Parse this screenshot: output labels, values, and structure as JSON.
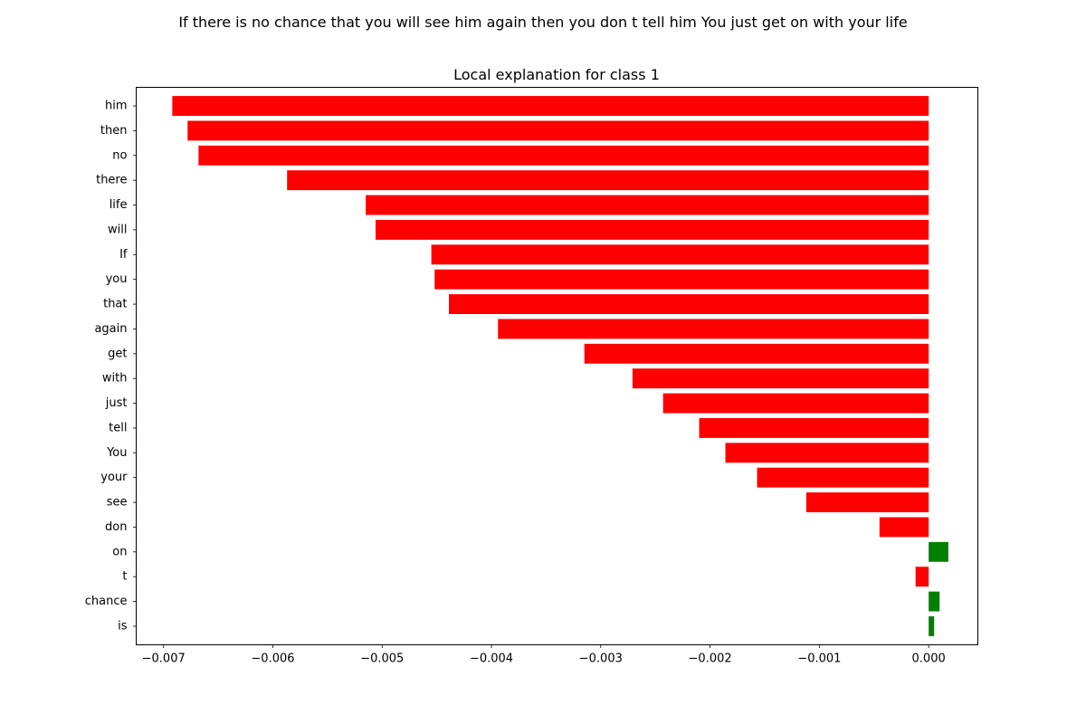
{
  "figure": {
    "suptitle": "If there is no chance that you will see him again then you don t tell him You just get on with your life"
  },
  "chart_data": {
    "type": "bar",
    "orientation": "horizontal",
    "title": "Local explanation for class 1",
    "xlabel": "",
    "ylabel": "",
    "xlim": [
      -0.00725,
      0.00045
    ],
    "grid": false,
    "colors": {
      "negative": "#ff0000",
      "positive": "#008000"
    },
    "x_ticks": [
      {
        "value": -0.007,
        "label": "−0.007"
      },
      {
        "value": -0.006,
        "label": "−0.006"
      },
      {
        "value": -0.005,
        "label": "−0.005"
      },
      {
        "value": -0.004,
        "label": "−0.004"
      },
      {
        "value": -0.003,
        "label": "−0.003"
      },
      {
        "value": -0.002,
        "label": "−0.002"
      },
      {
        "value": -0.001,
        "label": "−0.001"
      },
      {
        "value": 0.0,
        "label": "0.000"
      }
    ],
    "bars": [
      {
        "label": "him",
        "value": -0.00692
      },
      {
        "label": "then",
        "value": -0.00678
      },
      {
        "label": "no",
        "value": -0.00668
      },
      {
        "label": "there",
        "value": -0.00587
      },
      {
        "label": "life",
        "value": -0.00515
      },
      {
        "label": "will",
        "value": -0.00506
      },
      {
        "label": "If",
        "value": -0.00455
      },
      {
        "label": "you",
        "value": -0.00452
      },
      {
        "label": "that",
        "value": -0.00439
      },
      {
        "label": "again",
        "value": -0.00394
      },
      {
        "label": "get",
        "value": -0.00315
      },
      {
        "label": "with",
        "value": -0.00271
      },
      {
        "label": "just",
        "value": -0.00243
      },
      {
        "label": "tell",
        "value": -0.0021
      },
      {
        "label": "You",
        "value": -0.00186
      },
      {
        "label": "your",
        "value": -0.00157
      },
      {
        "label": "see",
        "value": -0.00112
      },
      {
        "label": "don",
        "value": -0.00045
      },
      {
        "label": "on",
        "value": 0.00018
      },
      {
        "label": "t",
        "value": -0.00012
      },
      {
        "label": "chance",
        "value": 0.0001
      },
      {
        "label": "is",
        "value": 5e-05
      }
    ]
  }
}
